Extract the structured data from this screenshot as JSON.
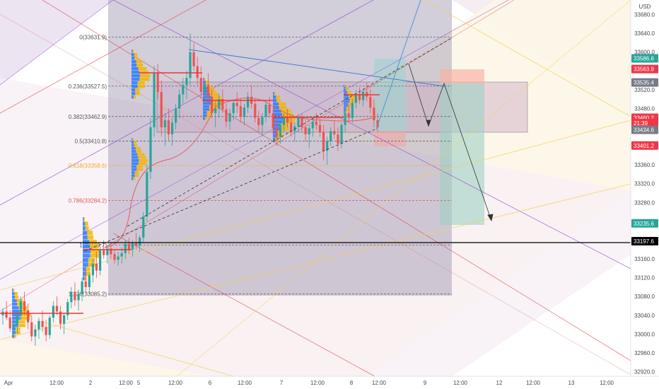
{
  "chart_data": {
    "type": "candlestick",
    "currency": "USD",
    "y_ticks": [
      33680.0,
      33640.0,
      33600.0,
      33560.0,
      33520.0,
      33480.0,
      33440.0,
      33400.0,
      33360.0,
      33320.0,
      33280.0,
      33240.0,
      33200.0,
      33160.0,
      33120.0,
      33080.0,
      33040.0,
      33000.0,
      32960.0,
      32920.0
    ],
    "y_tick_labels": [
      "33680.0",
      "33640.0",
      "33600.0",
      "33560.0",
      "33520.0",
      "33480.0",
      "33440.0",
      "33400.0",
      "33360.0",
      "33320.0",
      "33280.0",
      "33240.0",
      "33200.0",
      "33160.0",
      "33120.0",
      "33080.0",
      "33040.0",
      "33000.0",
      "32960.0",
      "32920.0"
    ],
    "ylim": [
      32905,
      33695
    ],
    "x_ticks": [
      "Apr",
      "12:00",
      "2",
      "12:00",
      "5",
      "12:00",
      "6",
      "12:00",
      "7",
      "12:00",
      "8",
      "12:00",
      "9",
      "12:00",
      "12",
      "12:00",
      "13",
      "12:00"
    ],
    "price_tags": [
      {
        "label": "33586.6",
        "value": 33586.6,
        "color": "#26a69a"
      },
      {
        "label": "33563.9",
        "value": 33563.9,
        "color": "#f23645"
      },
      {
        "label": "33535.4",
        "value": 33535.4,
        "color": "#787b86"
      },
      {
        "label": "33460.2",
        "value": 33460.2,
        "color": "#f23645"
      },
      {
        "label": "21:39",
        "value": 33449.0,
        "color": "#f23645"
      },
      {
        "label": "33434.6",
        "value": 33434.6,
        "color": "#787b86"
      },
      {
        "label": "33401.2",
        "value": 33401.2,
        "color": "#f23645"
      },
      {
        "label": "33235.6",
        "value": 33235.6,
        "color": "#26a69a"
      },
      {
        "label": "33197.6",
        "value": 33197.6,
        "color": "#000000"
      }
    ],
    "fib_levels": [
      {
        "label": "0(33631.9)",
        "ratio": 0,
        "value": 33631.9,
        "color": "#555555"
      },
      {
        "label": "0.236(33527.5)",
        "ratio": 0.236,
        "value": 33527.5,
        "color": "#555555"
      },
      {
        "label": "0.382(33462.9)",
        "ratio": 0.382,
        "value": 33462.9,
        "color": "#555555"
      },
      {
        "label": "0.5(33410.8)",
        "ratio": 0.5,
        "value": 33410.8,
        "color": "#555555"
      },
      {
        "label": "0.618(33358.6)",
        "ratio": 0.618,
        "value": 33358.6,
        "color": "#f5a623"
      },
      {
        "label": "0.786(33284.2)",
        "ratio": 0.786,
        "value": 33284.2,
        "color": "#e05555"
      },
      {
        "label": "1(33189.7)",
        "ratio": 1,
        "value": 33189.7,
        "color": "#555555"
      },
      {
        "label": "1.236(33085.2)",
        "ratio": 1.236,
        "value": 33085.2,
        "color": "#555555"
      }
    ],
    "candles": [
      [
        33040,
        33055,
        33020,
        33048
      ],
      [
        33048,
        33070,
        33030,
        33035
      ],
      [
        33035,
        33050,
        33005,
        33012
      ],
      [
        33012,
        33030,
        32990,
        33020
      ],
      [
        33020,
        33045,
        33000,
        33040
      ],
      [
        33040,
        33080,
        33030,
        33070
      ],
      [
        33070,
        33090,
        33040,
        33050
      ],
      [
        33050,
        33065,
        33010,
        33025
      ],
      [
        33025,
        33040,
        32985,
        32995
      ],
      [
        32995,
        33020,
        32975,
        33010
      ],
      [
        33010,
        33035,
        32990,
        33028
      ],
      [
        33028,
        33050,
        33005,
        33015
      ],
      [
        33015,
        33030,
        32985,
        32998
      ],
      [
        32998,
        33040,
        32990,
        33035
      ],
      [
        33035,
        33070,
        33025,
        33060
      ],
      [
        33060,
        33080,
        33040,
        33048
      ],
      [
        33048,
        33060,
        33010,
        33022
      ],
      [
        33022,
        33045,
        33000,
        33040
      ],
      [
        33040,
        33075,
        33030,
        33068
      ],
      [
        33068,
        33100,
        33055,
        33090
      ],
      [
        33090,
        33110,
        33060,
        33072
      ],
      [
        33072,
        33095,
        33050,
        33085
      ],
      [
        33085,
        33120,
        33070,
        33112
      ],
      [
        33112,
        33140,
        33090,
        33100
      ],
      [
        33100,
        33130,
        33085,
        33125
      ],
      [
        33125,
        33160,
        33110,
        33150
      ],
      [
        33150,
        33175,
        33120,
        33135
      ],
      [
        33135,
        33185,
        33125,
        33178
      ],
      [
        33178,
        33200,
        33160,
        33168
      ],
      [
        33168,
        33190,
        33150,
        33182
      ],
      [
        33182,
        33195,
        33160,
        33170
      ],
      [
        33170,
        33180,
        33150,
        33158
      ],
      [
        33158,
        33175,
        33145,
        33165
      ],
      [
        33165,
        33185,
        33150,
        33172
      ],
      [
        33172,
        33200,
        33160,
        33192
      ],
      [
        33192,
        33205,
        33170,
        33180
      ],
      [
        33180,
        33200,
        33165,
        33195
      ],
      [
        33195,
        33215,
        33180,
        33188
      ],
      [
        33188,
        33210,
        33175,
        33205
      ],
      [
        33205,
        33260,
        33195,
        33250
      ],
      [
        33250,
        33360,
        33240,
        33345
      ],
      [
        33345,
        33460,
        33330,
        33440
      ],
      [
        33440,
        33570,
        33420,
        33555
      ],
      [
        33555,
        33575,
        33500,
        33515
      ],
      [
        33515,
        33540,
        33420,
        33440
      ],
      [
        33440,
        33470,
        33400,
        33455
      ],
      [
        33455,
        33480,
        33410,
        33425
      ],
      [
        33425,
        33460,
        33400,
        33450
      ],
      [
        33450,
        33490,
        33435,
        33480
      ],
      [
        33480,
        33520,
        33460,
        33510
      ],
      [
        33510,
        33545,
        33490,
        33530
      ],
      [
        33530,
        33560,
        33500,
        33545
      ],
      [
        33545,
        33640,
        33530,
        33600
      ],
      [
        33600,
        33620,
        33560,
        33570
      ],
      [
        33570,
        33590,
        33530,
        33545
      ],
      [
        33545,
        33570,
        33500,
        33515
      ],
      [
        33515,
        33540,
        33490,
        33530
      ],
      [
        33530,
        33555,
        33495,
        33505
      ],
      [
        33505,
        33520,
        33460,
        33470
      ],
      [
        33470,
        33495,
        33440,
        33480
      ],
      [
        33480,
        33510,
        33460,
        33500
      ],
      [
        33500,
        33520,
        33470,
        33478
      ],
      [
        33478,
        33490,
        33440,
        33452
      ],
      [
        33452,
        33480,
        33435,
        33470
      ],
      [
        33470,
        33500,
        33455,
        33492
      ],
      [
        33492,
        33515,
        33470,
        33485
      ],
      [
        33485,
        33500,
        33450,
        33462
      ],
      [
        33462,
        33490,
        33445,
        33482
      ],
      [
        33482,
        33515,
        33470,
        33505
      ],
      [
        33505,
        33530,
        33480,
        33490
      ],
      [
        33490,
        33500,
        33450,
        33460
      ],
      [
        33460,
        33475,
        33430,
        33445
      ],
      [
        33445,
        33470,
        33420,
        33462
      ],
      [
        33462,
        33495,
        33450,
        33488
      ],
      [
        33488,
        33505,
        33460,
        33470
      ],
      [
        33470,
        33480,
        33425,
        33438
      ],
      [
        33438,
        33455,
        33400,
        33420
      ],
      [
        33420,
        33450,
        33405,
        33445
      ],
      [
        33445,
        33470,
        33430,
        33462
      ],
      [
        33462,
        33480,
        33440,
        33450
      ],
      [
        33450,
        33465,
        33420,
        33432
      ],
      [
        33432,
        33450,
        33410,
        33442
      ],
      [
        33442,
        33468,
        33430,
        33460
      ],
      [
        33460,
        33470,
        33430,
        33440
      ],
      [
        33440,
        33455,
        33410,
        33425
      ],
      [
        33425,
        33445,
        33395,
        33438
      ],
      [
        33438,
        33460,
        33420,
        33452
      ],
      [
        33452,
        33470,
        33435,
        33445
      ],
      [
        33445,
        33458,
        33420,
        33430
      ],
      [
        33430,
        33445,
        33370,
        33390
      ],
      [
        33390,
        33420,
        33360,
        33410
      ],
      [
        33410,
        33440,
        33400,
        33432
      ],
      [
        33432,
        33455,
        33415,
        33425
      ],
      [
        33425,
        33440,
        33390,
        33405
      ],
      [
        33405,
        33450,
        33395,
        33445
      ],
      [
        33445,
        33480,
        33430,
        33470
      ],
      [
        33470,
        33490,
        33450,
        33460
      ],
      [
        33460,
        33500,
        33450,
        33492
      ],
      [
        33492,
        33520,
        33480,
        33510
      ],
      [
        33510,
        33525,
        33490,
        33498
      ],
      [
        33498,
        33520,
        33485,
        33515
      ],
      [
        33515,
        33535,
        33495,
        33505
      ],
      [
        33505,
        33520,
        33470,
        33482
      ],
      [
        33482,
        33500,
        33440,
        33455
      ],
      [
        33455,
        33470,
        33430,
        33440
      ]
    ]
  }
}
